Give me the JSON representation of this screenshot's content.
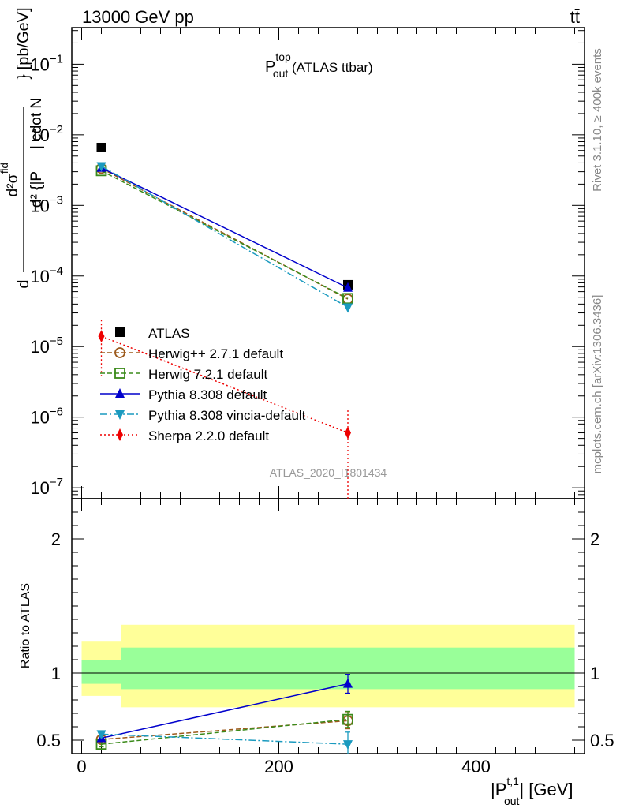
{
  "header": {
    "energy_label": "13000 GeV pp",
    "process_label": "tt̄",
    "plot_title_main": "P",
    "plot_title_sup": "top",
    "plot_title_sub": "out",
    "plot_title_rest": " (ATLAS ttbar)",
    "analysis_id": "ATLAS_2020_I1801434",
    "side_label_rivet": "Rivet 3.1.10, ≥ 400k events",
    "side_label_mcplots": "mcplots.cern.ch [arXiv:1306.3436]"
  },
  "chart_data": [
    {
      "type": "line",
      "name": "main-panel",
      "ylabel": "d²σ^{fid} / d²{|P_{out}^{t,1}| cdot N_{jets}} [pb/GeV]",
      "yscale": "log",
      "ylim": [
        7e-08,
        0.33
      ],
      "y_ticks": [
        {
          "value": 1e-07,
          "label_base": "10",
          "label_exp": "−7"
        },
        {
          "value": 1e-06,
          "label_base": "10",
          "label_exp": "−6"
        },
        {
          "value": 1e-05,
          "label_base": "10",
          "label_exp": "−5"
        },
        {
          "value": 0.0001,
          "label_base": "10",
          "label_exp": "−4"
        },
        {
          "value": 0.001,
          "label_base": "10",
          "label_exp": "−3"
        },
        {
          "value": 0.01,
          "label_base": "10",
          "label_exp": "−2"
        },
        {
          "value": 0.1,
          "label_base": "10",
          "label_exp": "−1"
        }
      ],
      "x": [
        20,
        270
      ],
      "xlim": [
        -10,
        510
      ],
      "series": [
        {
          "name": "ATLAS",
          "marker": "square-filled",
          "color": "#000000",
          "dash": "none",
          "values": [
            0.0066,
            7.5e-05
          ]
        },
        {
          "name": "Herwig++ 2.7.1 default",
          "marker": "circle-open",
          "color": "#9c5a1c",
          "dash": "6,3",
          "values": [
            0.00335,
            4.7e-05
          ]
        },
        {
          "name": "Herwig 7.2.1 default",
          "marker": "square-open",
          "color": "#3a8a1a",
          "dash": "6,3",
          "values": [
            0.0031,
            4.8e-05
          ]
        },
        {
          "name": "Pythia 8.308 default",
          "marker": "triangle-up",
          "color": "#0000cc",
          "dash": "none",
          "values": [
            0.0034,
            6.8e-05
          ]
        },
        {
          "name": "Pythia 8.308 vincia-default",
          "marker": "triangle-down",
          "color": "#1a9abf",
          "dash": "9,3,2,3",
          "values": [
            0.0036,
            3.6e-05
          ]
        },
        {
          "name": "Sherpa 2.2.0 default",
          "marker": "diamond",
          "color": "#ee0000",
          "dash": "2,3",
          "values": [
            1.4e-05,
            6e-07
          ],
          "err_low": [
            3.8e-06,
            5e-08
          ],
          "err_high": [
            2.4e-05,
            1.25e-06
          ]
        }
      ]
    },
    {
      "type": "line",
      "name": "ratio-panel",
      "ylabel": "Ratio to ATLAS",
      "xlabel": "|P_{out}^{t,1}| [GeV]",
      "ylim": [
        0.4,
        2.3
      ],
      "y_ticks": [
        0.5,
        1,
        2
      ],
      "x_ticks": [
        0,
        200,
        400
      ],
      "xlim": [
        -10,
        510
      ],
      "bands": {
        "bins": [
          [
            0,
            40
          ],
          [
            40,
            500
          ]
        ],
        "stat_low": [
          0.92,
          0.88
        ],
        "stat_high": [
          1.1,
          1.19
        ],
        "total_low": [
          0.83,
          0.745
        ],
        "total_high": [
          1.24,
          1.36
        ]
      },
      "series": [
        {
          "name": "Herwig++ 2.7.1 default",
          "values": [
            0.505,
            0.645
          ],
          "err": [
            0.02,
            0.06
          ]
        },
        {
          "name": "Herwig 7.2.1 default",
          "values": [
            0.47,
            0.655
          ],
          "err": [
            0.02,
            0.06
          ]
        },
        {
          "name": "Pythia 8.308 default",
          "values": [
            0.515,
            0.92
          ],
          "err": [
            0.02,
            0.07
          ]
        },
        {
          "name": "Pythia 8.308 vincia-default",
          "values": [
            0.545,
            0.47
          ],
          "err": [
            0.02,
            0.09
          ]
        }
      ]
    }
  ]
}
